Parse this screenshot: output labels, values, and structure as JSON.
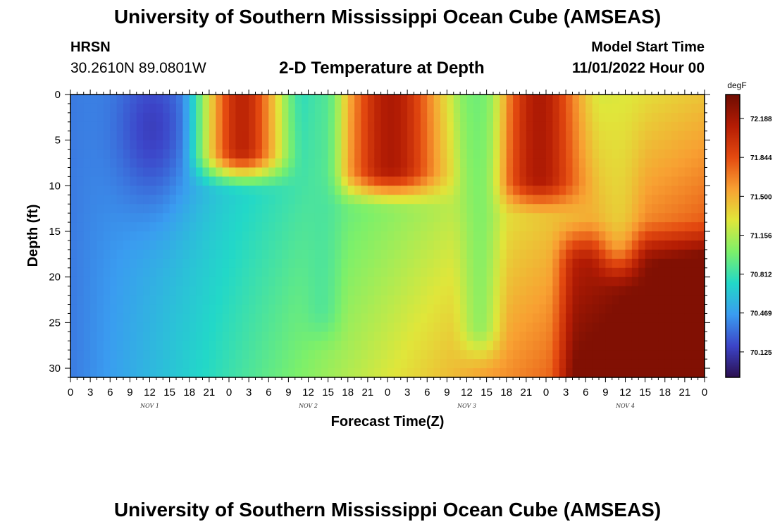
{
  "header": {
    "title": "University of Southern Mississippi Ocean Cube (AMSEAS)",
    "station": "HRSN",
    "coords": "30.2610N  89.0801W",
    "plot_title": "2-D Temperature at Depth",
    "model_start_label": "Model Start Time",
    "model_start_value": "11/01/2022 Hour 00"
  },
  "footer": {
    "title": "University of Southern Mississippi Ocean Cube (AMSEAS)"
  },
  "colors": {
    "scale": [
      "#2b0f4f",
      "#3c44c8",
      "#3a9cf0",
      "#22d8c8",
      "#7cf06a",
      "#e0e63a",
      "#f8a032",
      "#e44a10",
      "#b41c04",
      "#6e0c02"
    ]
  },
  "chart_data": {
    "type": "heatmap",
    "title": "2-D Temperature at Depth",
    "xlabel": "Forecast Time(Z)",
    "ylabel": "Depth (ft)",
    "x_hours": [
      0,
      96
    ],
    "ylim": [
      0,
      31
    ],
    "x_tick_labels": [
      "0",
      "3",
      "6",
      "9",
      "12",
      "15",
      "18",
      "21",
      "0",
      "3",
      "6",
      "9",
      "12",
      "15",
      "18",
      "21",
      "0",
      "3",
      "6",
      "9",
      "12",
      "15",
      "18",
      "21",
      "0",
      "3",
      "6",
      "9",
      "12",
      "15",
      "18",
      "21",
      "0"
    ],
    "y_ticks": [
      0,
      5,
      10,
      15,
      20,
      25,
      30
    ],
    "y_tick_labels": [
      "0",
      "5",
      "10",
      "15",
      "20",
      "25",
      "30"
    ],
    "day_labels": [
      {
        "label": "NOV 1",
        "hour": 12
      },
      {
        "label": "NOV 2",
        "hour": 36
      },
      {
        "label": "NOV 3",
        "hour": 60
      },
      {
        "label": "NOV 4",
        "hour": 84
      }
    ],
    "colorbar": {
      "unit": "degF",
      "range": [
        69.9,
        72.4
      ],
      "tick_values": [
        72.188,
        71.844,
        71.5,
        71.156,
        70.812,
        70.469,
        70.125
      ],
      "tick_labels": [
        "72.188",
        "71.844",
        "71.500",
        "71.156",
        "70.812",
        "70.469",
        "70.125"
      ]
    }
  }
}
